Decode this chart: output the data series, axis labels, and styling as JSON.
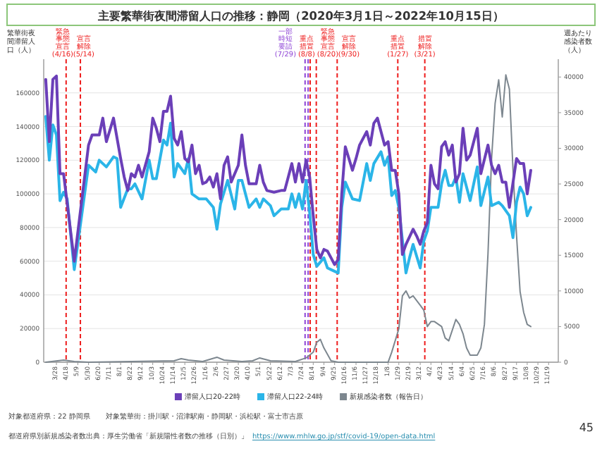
{
  "chart_data": {
    "type": "line",
    "title": "主要繁華街夜間滞留人口の推移：静岡（2020年3月1日～2022年10月15日）",
    "ylabel": "繁華街夜間滞留人口（人）",
    "y2label": "週あたり感染者数（人）",
    "xlim": [
      "2020-03-03",
      "2022-12-08"
    ],
    "xticks": [
      {
        "value": "2020-03-28",
        "label": "3/28"
      },
      {
        "value": "2020-04-18",
        "label": "4/18"
      },
      {
        "value": "2020-05-09",
        "label": "5/9"
      },
      {
        "value": "2020-05-30",
        "label": "5/30"
      },
      {
        "value": "2020-06-20",
        "label": "6/20"
      },
      {
        "value": "2020-07-11",
        "label": "7/11"
      },
      {
        "value": "2020-08-01",
        "label": "8/1"
      },
      {
        "value": "2020-08-22",
        "label": "8/22"
      },
      {
        "value": "2020-09-12",
        "label": "9/12"
      },
      {
        "value": "2020-10-03",
        "label": "10/3"
      },
      {
        "value": "2020-10-24",
        "label": "10/24"
      },
      {
        "value": "2020-11-14",
        "label": "11/14"
      },
      {
        "value": "2020-12-05",
        "label": "12/5"
      },
      {
        "value": "2020-12-26",
        "label": "12/26"
      },
      {
        "value": "2021-01-16",
        "label": "1/16"
      },
      {
        "value": "2021-02-06",
        "label": "2/6"
      },
      {
        "value": "2021-02-27",
        "label": "2/27"
      },
      {
        "value": "2021-03-20",
        "label": "3/20"
      },
      {
        "value": "2021-04-10",
        "label": "4/10"
      },
      {
        "value": "2021-05-01",
        "label": "5/1"
      },
      {
        "value": "2021-05-22",
        "label": "5/22"
      },
      {
        "value": "2021-06-12",
        "label": "6/12"
      },
      {
        "value": "2021-07-03",
        "label": "7/3"
      },
      {
        "value": "2021-07-24",
        "label": "7/24"
      },
      {
        "value": "2021-08-14",
        "label": "8/14"
      },
      {
        "value": "2021-09-04",
        "label": "9/4"
      },
      {
        "value": "2021-09-25",
        "label": "9/25"
      },
      {
        "value": "2021-10-16",
        "label": "10/16"
      },
      {
        "value": "2021-11-06",
        "label": "11/6"
      },
      {
        "value": "2021-11-27",
        "label": "11/27"
      },
      {
        "value": "2021-12-18",
        "label": "12/18"
      },
      {
        "value": "2022-01-08",
        "label": "1/8"
      },
      {
        "value": "2022-01-29",
        "label": "1/29"
      },
      {
        "value": "2022-02-19",
        "label": "2/19"
      },
      {
        "value": "2022-03-12",
        "label": "3/12"
      },
      {
        "value": "2022-04-02",
        "label": "4/2"
      },
      {
        "value": "2022-04-23",
        "label": "4/23"
      },
      {
        "value": "2022-05-14",
        "label": "5/14"
      },
      {
        "value": "2022-06-04",
        "label": "6/4"
      },
      {
        "value": "2022-06-25",
        "label": "6/25"
      },
      {
        "value": "2022-07-16",
        "label": "7/16"
      },
      {
        "value": "2022-08-06",
        "label": "8/6"
      },
      {
        "value": "2022-08-27",
        "label": "8/27"
      },
      {
        "value": "2022-09-17",
        "label": "9/17"
      },
      {
        "value": "2022-10-08",
        "label": "10/8"
      },
      {
        "value": "2022-10-29",
        "label": "10/29"
      },
      {
        "value": "2022-11-19",
        "label": "11/19"
      }
    ],
    "ylim": [
      0,
      180000
    ],
    "yticks": [
      0,
      20000,
      40000,
      60000,
      80000,
      100000,
      120000,
      140000,
      160000
    ],
    "y2lim": [
      0,
      42500
    ],
    "y2ticks": [
      0,
      5000,
      10000,
      15000,
      20000,
      25000,
      30000,
      35000,
      40000
    ],
    "grid": "y",
    "legend": "bottom",
    "series": [
      {
        "name": "滞留人口20-22時",
        "color": "#6b3fb8",
        "x": [
          "2020-03-07",
          "2020-03-14",
          "2020-03-21",
          "2020-03-28",
          "2020-04-04",
          "2020-04-11",
          "2020-05-02",
          "2020-05-30",
          "2020-06-06",
          "2020-06-20",
          "2020-06-27",
          "2020-07-04",
          "2020-07-18",
          "2020-08-01",
          "2020-08-08",
          "2020-08-15",
          "2020-08-22",
          "2020-08-29",
          "2020-09-05",
          "2020-09-12",
          "2020-09-26",
          "2020-10-03",
          "2020-10-10",
          "2020-10-17",
          "2020-10-24",
          "2020-10-31",
          "2020-11-07",
          "2020-11-14",
          "2020-11-21",
          "2020-11-28",
          "2020-12-05",
          "2020-12-12",
          "2020-12-19",
          "2020-12-26",
          "2021-01-02",
          "2021-01-09",
          "2021-01-16",
          "2021-01-23",
          "2021-01-30",
          "2021-02-06",
          "2021-02-13",
          "2021-02-20",
          "2021-02-27",
          "2021-03-06",
          "2021-03-20",
          "2021-03-27",
          "2021-04-03",
          "2021-04-10",
          "2021-04-24",
          "2021-05-01",
          "2021-05-08",
          "2021-05-15",
          "2021-05-29",
          "2021-06-12",
          "2021-06-19",
          "2021-07-03",
          "2021-07-10",
          "2021-07-17",
          "2021-07-24",
          "2021-07-31",
          "2021-08-07",
          "2021-08-14",
          "2021-08-21",
          "2021-08-28",
          "2021-09-04",
          "2021-09-11",
          "2021-09-18",
          "2021-09-25",
          "2021-10-02",
          "2021-10-09",
          "2021-10-16",
          "2021-10-30",
          "2021-11-06",
          "2021-11-13",
          "2021-11-27",
          "2021-12-04",
          "2021-12-11",
          "2021-12-18",
          "2022-01-01",
          "2022-01-08",
          "2022-01-15",
          "2022-01-22",
          "2022-01-29",
          "2022-02-05",
          "2022-02-12",
          "2022-02-26",
          "2022-03-05",
          "2022-03-12",
          "2022-03-19",
          "2022-03-26",
          "2022-04-02",
          "2022-04-09",
          "2022-04-16",
          "2022-04-23",
          "2022-04-30",
          "2022-05-07",
          "2022-05-14",
          "2022-05-21",
          "2022-05-28",
          "2022-06-04",
          "2022-06-11",
          "2022-06-18",
          "2022-07-02",
          "2022-07-09",
          "2022-07-23",
          "2022-07-30",
          "2022-08-06",
          "2022-08-13",
          "2022-08-20",
          "2022-08-27",
          "2022-09-03",
          "2022-09-17",
          "2022-09-24",
          "2022-10-01",
          "2022-10-08",
          "2022-10-15"
        ],
        "values": [
          168000,
          131000,
          168000,
          170000,
          112000,
          112000,
          60000,
          129000,
          135000,
          135000,
          145000,
          131000,
          145000,
          121000,
          110000,
          102000,
          112000,
          110000,
          117000,
          110000,
          125000,
          145000,
          139000,
          131000,
          149000,
          149000,
          158000,
          133000,
          129000,
          137000,
          121000,
          119000,
          129000,
          112000,
          117000,
          106000,
          107000,
          110000,
          104000,
          112000,
          97000,
          117000,
          122000,
          107000,
          117000,
          135000,
          117000,
          106000,
          106000,
          117000,
          107000,
          102000,
          101000,
          102000,
          102000,
          118000,
          107000,
          118000,
          107000,
          120000,
          110000,
          87000,
          67000,
          62000,
          67000,
          66000,
          62000,
          58000,
          61000,
          100000,
          128000,
          114000,
          121000,
          129000,
          137000,
          129000,
          142000,
          145000,
          129000,
          131000,
          114000,
          114000,
          100000,
          64000,
          70000,
          79000,
          75000,
          70000,
          78000,
          83000,
          117000,
          106000,
          103000,
          128000,
          131000,
          123000,
          129000,
          107000,
          112000,
          139000,
          120000,
          123000,
          139000,
          112000,
          129000,
          117000,
          112000,
          117000,
          107000,
          107000,
          92000,
          121000,
          118000,
          118000,
          100000,
          114000
        ]
      },
      {
        "name": "滞留人口22-24時",
        "color": "#2bb5e8",
        "x": [
          "2020-03-07",
          "2020-03-14",
          "2020-03-21",
          "2020-03-28",
          "2020-04-04",
          "2020-04-11",
          "2020-04-18",
          "2020-05-02",
          "2020-05-30",
          "2020-06-13",
          "2020-06-20",
          "2020-06-27",
          "2020-07-04",
          "2020-07-18",
          "2020-07-25",
          "2020-08-01",
          "2020-08-15",
          "2020-08-22",
          "2020-08-29",
          "2020-09-12",
          "2020-09-26",
          "2020-10-03",
          "2020-10-10",
          "2020-10-24",
          "2020-10-31",
          "2020-11-07",
          "2020-11-14",
          "2020-11-21",
          "2020-12-05",
          "2020-12-12",
          "2020-12-19",
          "2021-01-02",
          "2021-01-16",
          "2021-01-30",
          "2021-02-06",
          "2021-02-13",
          "2021-02-27",
          "2021-03-13",
          "2021-03-20",
          "2021-03-27",
          "2021-04-10",
          "2021-04-24",
          "2021-05-01",
          "2021-05-08",
          "2021-05-22",
          "2021-05-29",
          "2021-06-12",
          "2021-06-26",
          "2021-07-03",
          "2021-07-10",
          "2021-07-17",
          "2021-07-24",
          "2021-07-31",
          "2021-08-07",
          "2021-08-14",
          "2021-08-21",
          "2021-09-04",
          "2021-09-11",
          "2021-09-18",
          "2021-10-02",
          "2021-10-09",
          "2021-10-16",
          "2021-10-30",
          "2021-11-13",
          "2021-11-27",
          "2021-12-04",
          "2021-12-11",
          "2021-12-25",
          "2022-01-01",
          "2022-01-08",
          "2022-01-15",
          "2022-01-22",
          "2022-01-29",
          "2022-02-12",
          "2022-02-19",
          "2022-02-26",
          "2022-03-12",
          "2022-03-19",
          "2022-03-26",
          "2022-04-02",
          "2022-04-16",
          "2022-04-23",
          "2022-04-30",
          "2022-05-07",
          "2022-05-14",
          "2022-05-21",
          "2022-05-28",
          "2022-06-04",
          "2022-06-18",
          "2022-07-02",
          "2022-07-09",
          "2022-07-23",
          "2022-07-30",
          "2022-08-13",
          "2022-08-20",
          "2022-09-03",
          "2022-09-10",
          "2022-09-17",
          "2022-09-24",
          "2022-10-01",
          "2022-10-08",
          "2022-10-15"
        ],
        "values": [
          146000,
          120000,
          141000,
          135000,
          96000,
          101000,
          97000,
          55000,
          117000,
          113000,
          120000,
          118000,
          116000,
          122000,
          121000,
          92000,
          103000,
          103000,
          106000,
          97000,
          120000,
          109000,
          109000,
          132000,
          129000,
          142000,
          110000,
          118000,
          112000,
          121000,
          100000,
          97000,
          97000,
          92000,
          79000,
          94000,
          108000,
          91000,
          108000,
          108000,
          92000,
          97000,
          92000,
          97000,
          93000,
          87000,
          91000,
          91000,
          100000,
          92000,
          100000,
          91000,
          108000,
          89000,
          64000,
          57000,
          62000,
          56000,
          55000,
          53000,
          92000,
          107000,
          97000,
          96000,
          118000,
          108000,
          118000,
          125000,
          117000,
          122000,
          99000,
          102000,
          92000,
          53000,
          62000,
          70000,
          56000,
          72000,
          78000,
          92000,
          92000,
          106000,
          114000,
          105000,
          105000,
          110000,
          95000,
          112000,
          96000,
          116000,
          93000,
          110000,
          93000,
          95000,
          93000,
          87000,
          74000,
          95000,
          104000,
          100000,
          87000,
          92000
        ]
      },
      {
        "name": "新規感染者数（報告日）",
        "color": "#7d878f",
        "axis": "y2",
        "x": [
          "2020-03-07",
          "2020-04-11",
          "2020-05-02",
          "2020-05-30",
          "2020-11-14",
          "2020-11-28",
          "2020-12-12",
          "2021-01-09",
          "2021-01-23",
          "2021-02-06",
          "2021-02-20",
          "2021-03-27",
          "2021-04-17",
          "2021-05-01",
          "2021-05-22",
          "2021-07-10",
          "2021-07-31",
          "2021-08-14",
          "2021-08-21",
          "2021-08-28",
          "2021-09-04",
          "2021-09-18",
          "2021-10-02",
          "2022-01-08",
          "2022-01-15",
          "2022-01-29",
          "2022-02-05",
          "2022-02-12",
          "2022-02-19",
          "2022-02-26",
          "2022-03-12",
          "2022-03-19",
          "2022-03-26",
          "2022-04-02",
          "2022-04-09",
          "2022-04-23",
          "2022-04-30",
          "2022-05-07",
          "2022-05-21",
          "2022-05-28",
          "2022-06-04",
          "2022-06-11",
          "2022-06-18",
          "2022-07-02",
          "2022-07-09",
          "2022-07-16",
          "2022-07-23",
          "2022-07-30",
          "2022-08-06",
          "2022-08-13",
          "2022-08-20",
          "2022-08-27",
          "2022-09-03",
          "2022-09-10",
          "2022-09-17",
          "2022-09-24",
          "2022-10-01",
          "2022-10-08",
          "2022-10-15"
        ],
        "values": [
          0,
          300,
          100,
          0,
          200,
          500,
          300,
          100,
          400,
          700,
          300,
          100,
          200,
          600,
          200,
          100,
          600,
          1400,
          2800,
          3200,
          2000,
          200,
          0,
          0,
          1400,
          4700,
          9300,
          10000,
          9000,
          9300,
          8000,
          7300,
          5000,
          5700,
          5700,
          5000,
          3400,
          3000,
          6000,
          5300,
          4000,
          2000,
          1000,
          1000,
          2000,
          5300,
          15200,
          28500,
          36300,
          39600,
          34400,
          40300,
          38300,
          27100,
          17800,
          9900,
          7000,
          5300,
          5000
        ]
      }
    ],
    "ref_lines": [
      {
        "axis": "x",
        "value": "2020-04-16",
        "label": "緊急事態宣言 (4/16)",
        "color": "#ee1c1c",
        "line_style": "dashed"
      },
      {
        "axis": "x",
        "value": "2020-05-14",
        "label": "宣言解除 (5/14)",
        "color": "#ee1c1c",
        "line_style": "dashed"
      },
      {
        "axis": "x",
        "value": "2021-07-29",
        "label": "一部時短要請 (7/29)",
        "color": "#8e44d6",
        "line_style": "dashed"
      },
      {
        "axis": "x",
        "value": "2021-08-04",
        "color": "#8e44d6",
        "line_style": "dashed"
      },
      {
        "axis": "x",
        "value": "2021-08-08",
        "label": "重点措置 (8/8)",
        "color": "#ee1c1c",
        "line_style": "dashed"
      },
      {
        "axis": "x",
        "value": "2021-08-20",
        "label": "緊急事態宣言 (8/20)",
        "color": "#ee1c1c",
        "line_style": "dashed"
      },
      {
        "axis": "x",
        "value": "2021-09-30",
        "label": "宣言解除 (9/30)",
        "color": "#ee1c1c",
        "line_style": "dashed"
      },
      {
        "axis": "x",
        "value": "2022-01-27",
        "label": "重点措置 (1/27)",
        "color": "#ee1c1c",
        "line_style": "dashed"
      },
      {
        "axis": "x",
        "value": "2022-03-21",
        "label": "措置解除 (3/21)",
        "color": "#ee1c1c",
        "line_style": "dashed"
      }
    ],
    "annotations": [
      "対象都道府県：22 静岡県",
      "対象繁華街：掛川駅・沼津駅南・静岡駅・浜松駅・富士市吉原",
      "都道府県別新規感染者数出典：厚生労働省「新規陽性者数の推移（日別）」",
      "https://www.mhlw.go.jp/stf/covid-19/open-data.html",
      "45"
    ]
  }
}
